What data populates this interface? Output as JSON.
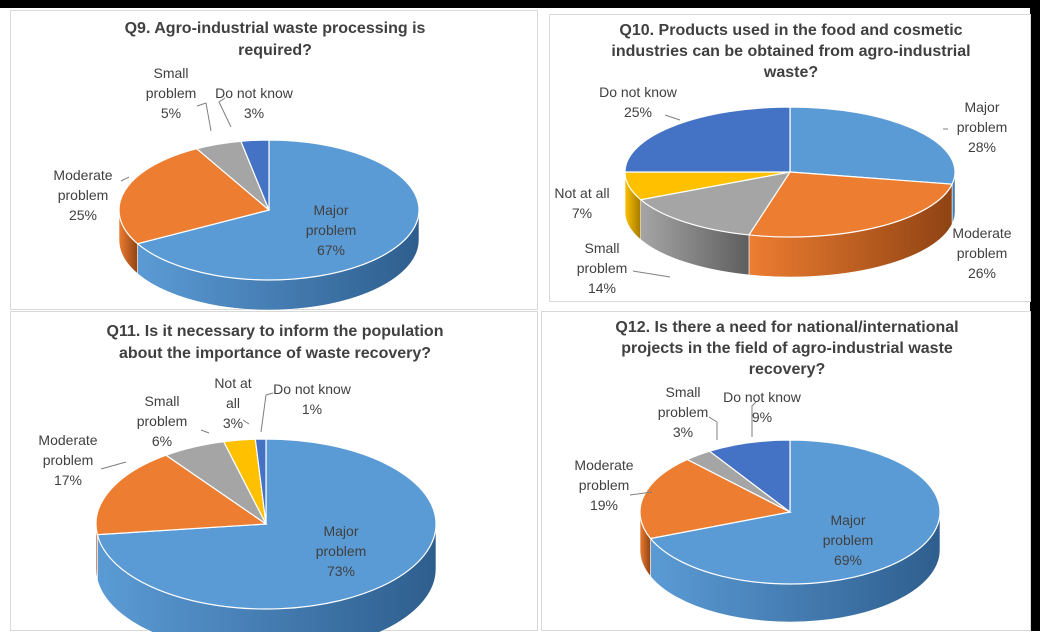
{
  "chart_data": [
    {
      "type": "pie",
      "title": [
        "Q9. Agro-industrial waste processing is",
        "required?"
      ],
      "slices": [
        {
          "label": [
            "Major",
            "problem"
          ],
          "value": 67,
          "pct": "67%",
          "color": "#5B9BD5",
          "dark": "#2E5E8E"
        },
        {
          "label": [
            "Moderate",
            "problem"
          ],
          "value": 25,
          "pct": "25%",
          "color": "#ED7D31",
          "dark": "#8F4313"
        },
        {
          "label": [
            "Small",
            "problem"
          ],
          "value": 5,
          "pct": "5%",
          "color": "#A5A5A5",
          "dark": "#5E5E5E"
        },
        {
          "label": [
            "Do not know"
          ],
          "value": 3,
          "pct": "3%",
          "color": "#4472C4",
          "dark": "#22407A"
        }
      ]
    },
    {
      "type": "pie",
      "title": [
        "Q10. Products used in the food and cosmetic",
        "industries can be obtained from agro-industrial",
        "waste?"
      ],
      "slices": [
        {
          "label": [
            "Major",
            "problem"
          ],
          "value": 28,
          "pct": "28%",
          "color": "#5B9BD5",
          "dark": "#2E5E8E"
        },
        {
          "label": [
            "Moderate",
            "problem"
          ],
          "value": 26,
          "pct": "26%",
          "color": "#ED7D31",
          "dark": "#8F4313"
        },
        {
          "label": [
            "Small",
            "problem"
          ],
          "value": 14,
          "pct": "14%",
          "color": "#A5A5A5",
          "dark": "#5E5E5E"
        },
        {
          "label": [
            "Not at all"
          ],
          "value": 7,
          "pct": "7%",
          "color": "#FFC000",
          "dark": "#A37A00"
        },
        {
          "label": [
            "Do not know"
          ],
          "value": 25,
          "pct": "25%",
          "color": "#4472C4",
          "dark": "#22407A"
        }
      ]
    },
    {
      "type": "pie",
      "title": [
        "Q11. Is it necessary to inform the population",
        "about the importance of waste recovery?"
      ],
      "slices": [
        {
          "label": [
            "Major",
            "problem"
          ],
          "value": 73,
          "pct": "73%",
          "color": "#5B9BD5",
          "dark": "#2E5E8E"
        },
        {
          "label": [
            "Moderate",
            "problem"
          ],
          "value": 17,
          "pct": "17%",
          "color": "#ED7D31",
          "dark": "#8F4313"
        },
        {
          "label": [
            "Small",
            "problem"
          ],
          "value": 6,
          "pct": "6%",
          "color": "#A5A5A5",
          "dark": "#5E5E5E"
        },
        {
          "label": [
            "Not at",
            "all"
          ],
          "value": 3,
          "pct": "3%",
          "color": "#FFC000",
          "dark": "#A37A00"
        },
        {
          "label": [
            "Do not know"
          ],
          "value": 1,
          "pct": "1%",
          "color": "#4472C4",
          "dark": "#22407A"
        }
      ]
    },
    {
      "type": "pie",
      "title": [
        "Q12. Is there a need for national/international",
        "projects in the field of agro-industrial waste",
        "recovery?"
      ],
      "slices": [
        {
          "label": [
            "Major",
            "problem"
          ],
          "value": 69,
          "pct": "69%",
          "color": "#5B9BD5",
          "dark": "#2E5E8E"
        },
        {
          "label": [
            "Moderate",
            "problem"
          ],
          "value": 19,
          "pct": "19%",
          "color": "#ED7D31",
          "dark": "#8F4313"
        },
        {
          "label": [
            "Small",
            "problem"
          ],
          "value": 3,
          "pct": "3%",
          "color": "#A5A5A5",
          "dark": "#5E5E5E"
        },
        {
          "label": [
            "Do not know"
          ],
          "value": 9,
          "pct": "9%",
          "color": "#4472C4",
          "dark": "#22407A"
        }
      ]
    }
  ]
}
